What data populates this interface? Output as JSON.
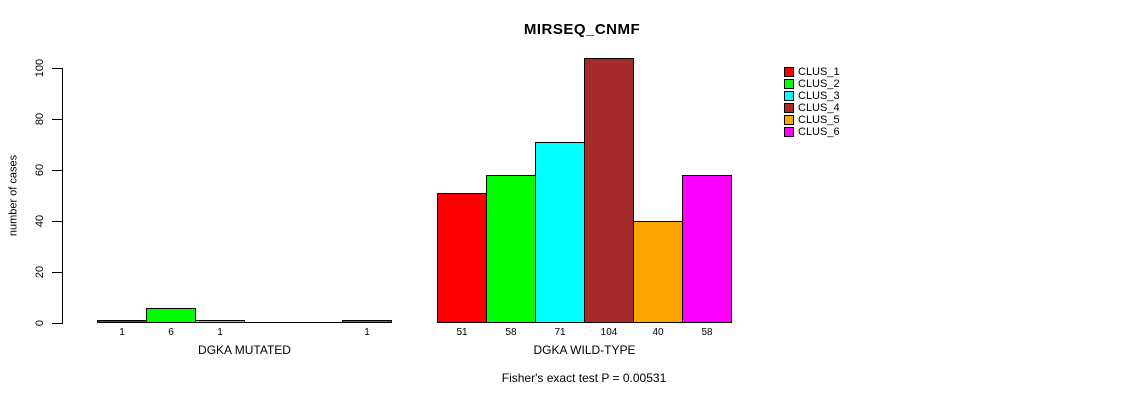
{
  "chart_data": {
    "type": "bar",
    "title": "MIRSEQ_CNMF",
    "ylabel": "number of cases",
    "xlabel": "",
    "ylim": [
      0,
      100
    ],
    "yticks": [
      0,
      20,
      40,
      60,
      80,
      100
    ],
    "grid": false,
    "legend_position": "right-outside",
    "categories": [
      "DGKA MUTATED",
      "DGKA WILD-TYPE"
    ],
    "series": [
      {
        "name": "CLUS_1",
        "color": "#FF0000",
        "values": [
          1,
          51
        ]
      },
      {
        "name": "CLUS_2",
        "color": "#00FF00",
        "values": [
          6,
          58
        ]
      },
      {
        "name": "CLUS_3",
        "color": "#00FFFF",
        "values": [
          1,
          71
        ]
      },
      {
        "name": "CLUS_4",
        "color": "#A52A2A",
        "values": [
          0,
          104
        ]
      },
      {
        "name": "CLUS_5",
        "color": "#FFA500",
        "values": [
          0,
          40
        ]
      },
      {
        "name": "CLUS_6",
        "color": "#FF00FF",
        "values": [
          1,
          58
        ]
      }
    ],
    "bar_value_labels_hidden_for_zero": true,
    "annotation": "Fisher's exact test P = 0.00531"
  }
}
